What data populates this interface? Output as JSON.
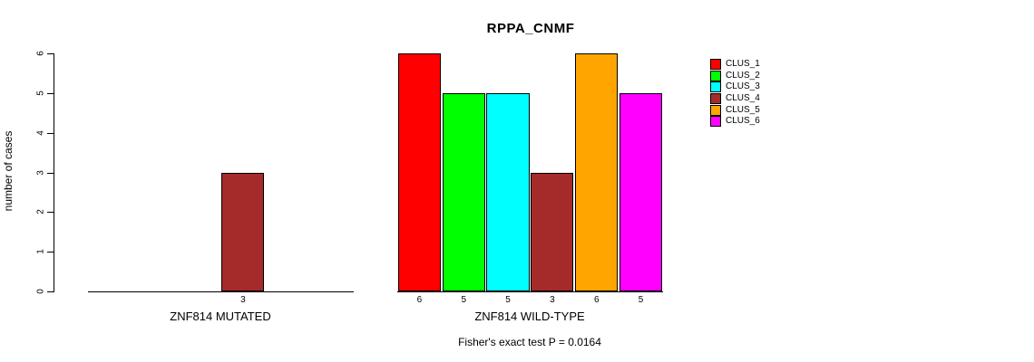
{
  "title": "RPPA_CNMF",
  "chart_data": {
    "type": "bar",
    "title": "RPPA_CNMF",
    "ylabel": "number of cases",
    "ylim": [
      0,
      6
    ],
    "yticks": [
      0,
      1,
      2,
      3,
      4,
      5,
      6
    ],
    "grid": false,
    "background": "#ffffff",
    "bar_border_color": "#000000",
    "cluster_colors": [
      "#FF0000",
      "#00FF00",
      "#00FFFF",
      "#A52A2A",
      "#FFA500",
      "#FF00FF"
    ],
    "legend": {
      "position": "top-right",
      "entries": [
        {
          "label": "CLUS_1",
          "color": "#FF0000"
        },
        {
          "label": "CLUS_2",
          "color": "#00FF00"
        },
        {
          "label": "CLUS_3",
          "color": "#00FFFF"
        },
        {
          "label": "CLUS_4",
          "color": "#A52A2A"
        },
        {
          "label": "CLUS_5",
          "color": "#FFA500"
        },
        {
          "label": "CLUS_6",
          "color": "#FF00FF"
        }
      ]
    },
    "groups": [
      {
        "label": "ZNF814 MUTATED",
        "values": [
          0,
          0,
          0,
          3,
          0,
          0
        ]
      },
      {
        "label": "ZNF814 WILD-TYPE",
        "values": [
          6,
          5,
          5,
          3,
          6,
          5
        ]
      }
    ],
    "bar_label_rule": "value shown under each drawn bar; zero bars not drawn",
    "annotation": "Fisher's exact test P = 0.0164"
  }
}
